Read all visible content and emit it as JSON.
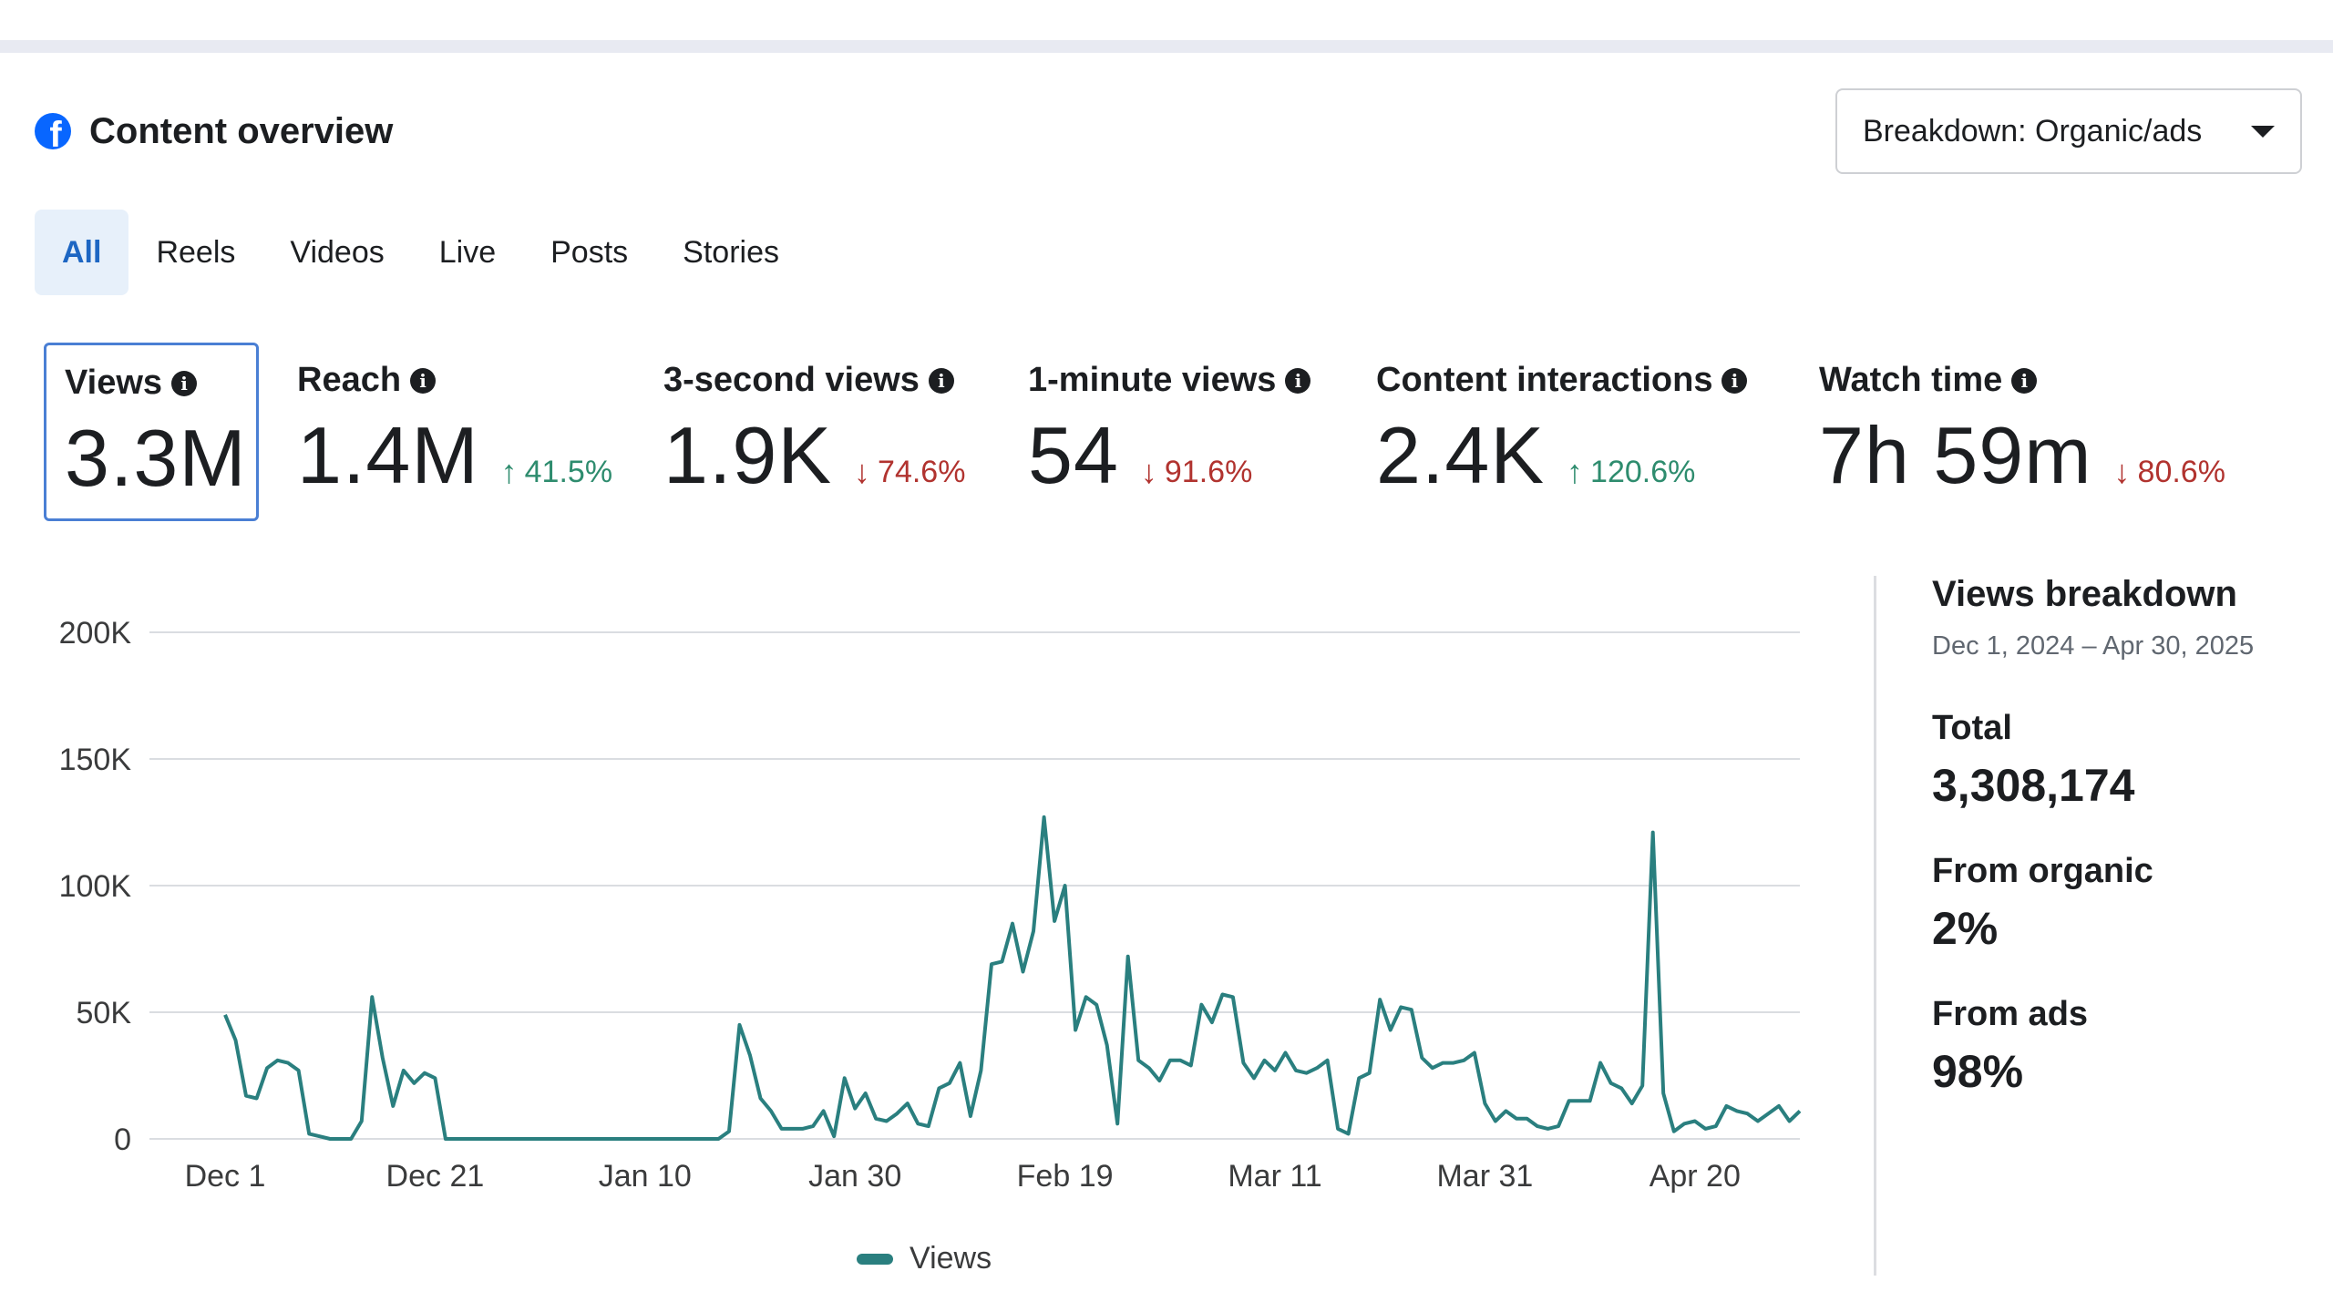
{
  "header": {
    "title": "Content overview",
    "logo_icon": "facebook-icon"
  },
  "breakdown": {
    "label": "Breakdown: Organic/ads"
  },
  "tabs": [
    {
      "label": "All",
      "active": true
    },
    {
      "label": "Reels"
    },
    {
      "label": "Videos"
    },
    {
      "label": "Live"
    },
    {
      "label": "Posts"
    },
    {
      "label": "Stories"
    }
  ],
  "metrics": [
    {
      "label": "Views",
      "value": "3.3M",
      "delta": "",
      "direction": ""
    },
    {
      "label": "Reach",
      "value": "1.4M",
      "delta": "41.5%",
      "direction": "up"
    },
    {
      "label": "3-second views",
      "value": "1.9K",
      "delta": "74.6%",
      "direction": "down"
    },
    {
      "label": "1-minute views",
      "value": "54",
      "delta": "91.6%",
      "direction": "down"
    },
    {
      "label": "Content interactions",
      "value": "2.4K",
      "delta": "120.6%",
      "direction": "up"
    },
    {
      "label": "Watch time",
      "value": "7h 59m",
      "delta": "80.6%",
      "direction": "down"
    }
  ],
  "colors": {
    "accent": "#1d66c3",
    "line": "#2a7f7f",
    "up": "#2e8c6e",
    "down": "#b1332f"
  },
  "chart_data": {
    "type": "line",
    "ylim": [
      0,
      200000
    ],
    "grid": true,
    "legend_position": "bottom",
    "yticks": [
      "0",
      "50K",
      "100K",
      "150K",
      "200K"
    ],
    "xticks": [
      "Dec 1",
      "Dec 21",
      "Jan 10",
      "Jan 30",
      "Feb 19",
      "Mar 11",
      "Mar 31",
      "Apr 20"
    ],
    "series": [
      {
        "name": "Views",
        "x_start": "Dec 1",
        "values": [
          49000,
          39000,
          17000,
          16000,
          28000,
          31000,
          30000,
          27000,
          2000,
          1000,
          0,
          0,
          0,
          7000,
          56000,
          32000,
          13000,
          27000,
          22000,
          26000,
          24000,
          0,
          0,
          0,
          0,
          0,
          0,
          0,
          0,
          0,
          0,
          0,
          0,
          0,
          0,
          0,
          0,
          0,
          0,
          0,
          0,
          0,
          0,
          0,
          0,
          0,
          0,
          0,
          3000,
          45000,
          33000,
          16000,
          11000,
          4000,
          4000,
          4000,
          5000,
          11000,
          1000,
          24000,
          12000,
          18000,
          8000,
          7000,
          10000,
          14000,
          6000,
          5000,
          20000,
          22000,
          30000,
          9000,
          27000,
          69000,
          70000,
          85000,
          66000,
          82000,
          127000,
          86000,
          100000,
          43000,
          56000,
          53000,
          37000,
          6000,
          72000,
          31000,
          28000,
          23000,
          31000,
          31000,
          29000,
          53000,
          46000,
          57000,
          56000,
          30000,
          24000,
          31000,
          27000,
          34000,
          27000,
          26000,
          28000,
          31000,
          4000,
          2000,
          24000,
          26000,
          55000,
          43000,
          52000,
          51000,
          32000,
          28000,
          30000,
          30000,
          31000,
          34000,
          14000,
          7000,
          11000,
          8000,
          8000,
          5000,
          4000,
          5000,
          15000,
          15000,
          15000,
          30000,
          22000,
          20000,
          14000,
          21000,
          121000,
          18000,
          3000,
          6000,
          7000,
          4000,
          5000,
          13000,
          11000,
          10000,
          7000,
          10000,
          13000,
          7000,
          11000
        ]
      }
    ]
  },
  "legend": {
    "label": "Views"
  },
  "panel": {
    "title": "Views breakdown",
    "date_range": "Dec 1, 2024 – Apr 30, 2025",
    "total_label": "Total",
    "total_value": "3,308,174",
    "organic_label": "From organic",
    "organic_value": "2%",
    "ads_label": "From ads",
    "ads_value": "98%"
  }
}
